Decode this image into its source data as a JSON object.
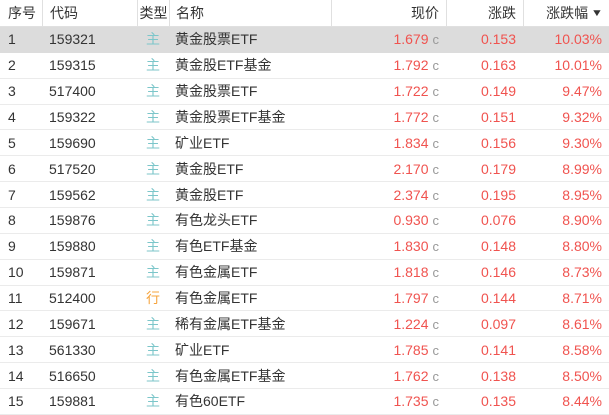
{
  "table": {
    "columns": [
      {
        "key": "index",
        "label": "序号"
      },
      {
        "key": "code",
        "label": "代码"
      },
      {
        "key": "type",
        "label": "类型"
      },
      {
        "key": "name",
        "label": "名称"
      },
      {
        "key": "price",
        "label": "现价"
      },
      {
        "key": "change",
        "label": "涨跌"
      },
      {
        "key": "pct",
        "label": "涨跌幅"
      }
    ],
    "sort": {
      "column": "涨跌幅",
      "direction": "desc",
      "icon": "▼"
    },
    "price_suffix": "c",
    "rows": [
      {
        "index": "1",
        "code": "159321",
        "type": "主",
        "type_color": "type_main",
        "name": "黄金股票ETF",
        "price": "1.679",
        "change": "0.153",
        "pct": "10.03%",
        "selected": true
      },
      {
        "index": "2",
        "code": "159315",
        "type": "主",
        "type_color": "type_main",
        "name": "黄金股ETF基金",
        "price": "1.792",
        "change": "0.163",
        "pct": "10.01%",
        "selected": false
      },
      {
        "index": "3",
        "code": "517400",
        "type": "主",
        "type_color": "type_main",
        "name": "黄金股票ETF",
        "price": "1.722",
        "change": "0.149",
        "pct": "9.47%",
        "selected": false
      },
      {
        "index": "4",
        "code": "159322",
        "type": "主",
        "type_color": "type_main",
        "name": "黄金股票ETF基金",
        "price": "1.772",
        "change": "0.151",
        "pct": "9.32%",
        "selected": false
      },
      {
        "index": "5",
        "code": "159690",
        "type": "主",
        "type_color": "type_main",
        "name": "矿业ETF",
        "price": "1.834",
        "change": "0.156",
        "pct": "9.30%",
        "selected": false
      },
      {
        "index": "6",
        "code": "517520",
        "type": "主",
        "type_color": "type_main",
        "name": "黄金股ETF",
        "price": "2.170",
        "change": "0.179",
        "pct": "8.99%",
        "selected": false
      },
      {
        "index": "7",
        "code": "159562",
        "type": "主",
        "type_color": "type_main",
        "name": "黄金股ETF",
        "price": "2.374",
        "change": "0.195",
        "pct": "8.95%",
        "selected": false
      },
      {
        "index": "8",
        "code": "159876",
        "type": "主",
        "type_color": "type_main",
        "name": "有色龙头ETF",
        "price": "0.930",
        "change": "0.076",
        "pct": "8.90%",
        "selected": false
      },
      {
        "index": "9",
        "code": "159880",
        "type": "主",
        "type_color": "type_main",
        "name": "有色ETF基金",
        "price": "1.830",
        "change": "0.148",
        "pct": "8.80%",
        "selected": false
      },
      {
        "index": "10",
        "code": "159871",
        "type": "主",
        "type_color": "type_main",
        "name": "有色金属ETF",
        "price": "1.818",
        "change": "0.146",
        "pct": "8.73%",
        "selected": false
      },
      {
        "index": "11",
        "code": "512400",
        "type": "行",
        "type_color": "type_alt",
        "name": "有色金属ETF",
        "price": "1.797",
        "change": "0.144",
        "pct": "8.71%",
        "selected": false
      },
      {
        "index": "12",
        "code": "159671",
        "type": "主",
        "type_color": "type_main",
        "name": "稀有金属ETF基金",
        "price": "1.224",
        "change": "0.097",
        "pct": "8.61%",
        "selected": false
      },
      {
        "index": "13",
        "code": "561330",
        "type": "主",
        "type_color": "type_main",
        "name": "矿业ETF",
        "price": "1.785",
        "change": "0.141",
        "pct": "8.58%",
        "selected": false
      },
      {
        "index": "14",
        "code": "516650",
        "type": "主",
        "type_color": "type_main",
        "name": "有色金属ETF基金",
        "price": "1.762",
        "change": "0.138",
        "pct": "8.50%",
        "selected": false
      },
      {
        "index": "15",
        "code": "159881",
        "type": "主",
        "type_color": "type_main",
        "name": "有色60ETF",
        "price": "1.735",
        "change": "0.135",
        "pct": "8.44%",
        "selected": false
      }
    ]
  },
  "colors": {
    "value_red": "#f0534f",
    "type_main": "#7cc6ca",
    "type_alt": "#f6a43d",
    "selected_row_bg": "#dcdcdc",
    "suffix_gray": "#999999",
    "header_text": "#333333",
    "separator": "#ebebeb"
  }
}
